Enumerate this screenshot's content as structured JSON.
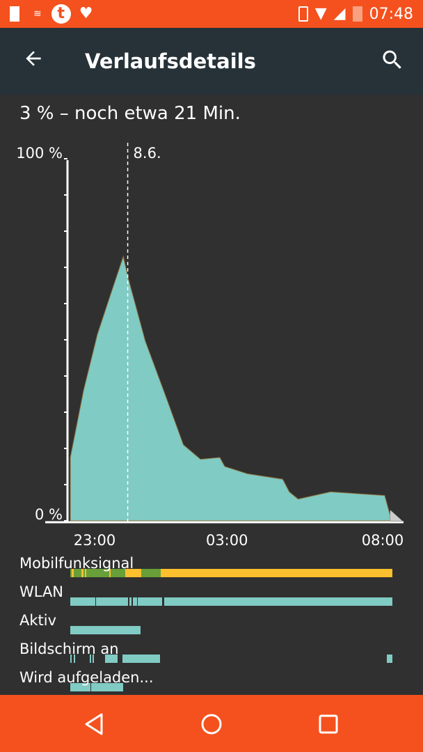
{
  "status_bar": {
    "time": "07:48",
    "left_icons": [
      "battery-alert-icon",
      "fritz-wifi-icon",
      "tumblr-icon",
      "heart-icon"
    ],
    "right_icons": [
      "vibrate-icon",
      "wifi-icon",
      "cell-signal-icon",
      "battery-alert-icon"
    ]
  },
  "app_bar": {
    "title": "Verlaufsdetails",
    "back_icon": "arrow-back-icon",
    "search_icon": "search-icon"
  },
  "summary": "3 % – noch etwa 21 Min.",
  "colors": {
    "accent": "#f4511e",
    "appbar": "#263238",
    "fill": "#80cbc4",
    "good_signal": "#689f38",
    "ok_signal": "#fbc02d"
  },
  "chart_data": {
    "type": "area",
    "ylabel_top": "100 %",
    "ylabel_bottom": "0 %",
    "ylim": [
      0,
      100
    ],
    "x_ticks": [
      "23:00",
      "03:00",
      "08:00"
    ],
    "marker": {
      "label": "8.6.",
      "time": "00:00"
    },
    "points": [
      [
        "22:16",
        0
      ],
      [
        "22:16",
        17.5
      ],
      [
        "22:40",
        36
      ],
      [
        "23:05",
        51.5
      ],
      [
        "23:30",
        63
      ],
      [
        "23:52",
        73
      ],
      [
        "00:01",
        67
      ],
      [
        "00:32",
        49.6
      ],
      [
        "01:10",
        34
      ],
      [
        "01:41",
        21
      ],
      [
        "02:12",
        17
      ],
      [
        "02:47",
        17.5
      ],
      [
        "02:56",
        15
      ],
      [
        "03:37",
        13
      ],
      [
        "04:41",
        11.5
      ],
      [
        "04:53",
        8
      ],
      [
        "05:09",
        6
      ],
      [
        "06:08",
        8
      ],
      [
        "07:46",
        7
      ],
      [
        "07:56",
        1.5
      ],
      [
        "07:56",
        0
      ]
    ],
    "projection": {
      "from": "07:56",
      "to": "08:18"
    }
  },
  "tracks": [
    {
      "label": "Mobilfunksignal",
      "segments": [
        [
          0,
          0.17,
          "#689f38"
        ],
        [
          0.17,
          0.22,
          "#fbc02d"
        ],
        [
          0.22,
          0.28,
          "#689f38"
        ],
        [
          0.28,
          1,
          "#fbc02d"
        ],
        [
          0.005,
          0.01,
          "#fbc02d"
        ],
        [
          0.035,
          0.04,
          "#fbc02d"
        ],
        [
          0.045,
          0.05,
          "#fbc02d"
        ],
        [
          0.12,
          0.125,
          "#fbc02d"
        ]
      ]
    },
    {
      "label": "WLAN",
      "segments": [
        [
          0,
          0.077,
          "#80cbc4"
        ],
        [
          0.08,
          0.18,
          "#80cbc4"
        ],
        [
          0.183,
          0.19,
          "#80cbc4"
        ],
        [
          0.195,
          0.207,
          "#80cbc4"
        ],
        [
          0.21,
          0.286,
          "#80cbc4"
        ],
        [
          0.292,
          1,
          "#80cbc4"
        ]
      ]
    },
    {
      "label": "Aktiv",
      "segments": [
        [
          0,
          0.218,
          "#80cbc4"
        ]
      ]
    },
    {
      "label": "Bildschirm an",
      "segments": [
        [
          0,
          0.005,
          "#80cbc4"
        ],
        [
          0.01,
          0.015,
          "#80cbc4"
        ],
        [
          0.06,
          0.064,
          "#80cbc4"
        ],
        [
          0.07,
          0.074,
          "#80cbc4"
        ],
        [
          0.109,
          0.147,
          "#80cbc4"
        ],
        [
          0.163,
          0.278,
          "#80cbc4"
        ],
        [
          0.983,
          1,
          "#80cbc4"
        ]
      ]
    },
    {
      "label": "Wird aufgeladen...",
      "segments": [
        [
          0,
          0.062,
          "#80cbc4"
        ],
        [
          0.064,
          0.165,
          "#80cbc4"
        ]
      ]
    }
  ],
  "nav": {
    "back": "nav-back-icon",
    "home": "nav-home-icon",
    "recents": "nav-recents-icon"
  }
}
